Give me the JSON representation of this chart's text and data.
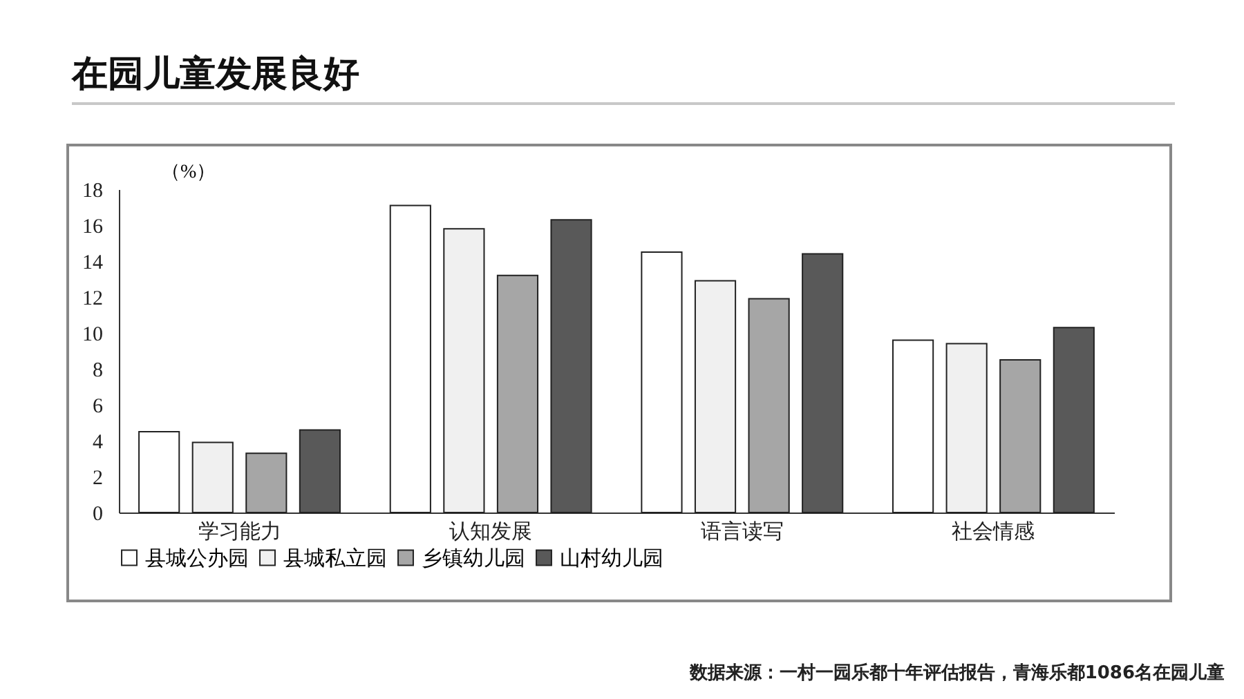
{
  "chart_data": {
    "type": "bar",
    "title": "在园儿童发展良好",
    "ylabel": "（%）",
    "categories": [
      "学习能力",
      "认知发展",
      "语言读写",
      "社会情感"
    ],
    "series": [
      {
        "name": "县城公办园",
        "color": "#ffffff",
        "values": [
          4.5,
          17.1,
          14.5,
          9.6
        ]
      },
      {
        "name": "县城私立园",
        "color": "#f0f0f0",
        "values": [
          3.9,
          15.8,
          12.9,
          9.4
        ]
      },
      {
        "name": "乡镇幼儿园",
        "color": "#a6a6a6",
        "values": [
          3.3,
          13.2,
          11.9,
          8.5
        ]
      },
      {
        "name": "山村幼儿园",
        "color": "#595959",
        "values": [
          4.6,
          16.3,
          14.4,
          10.3
        ]
      }
    ],
    "ylim": [
      0,
      18
    ],
    "yticks": [
      0,
      2,
      4,
      6,
      8,
      10,
      12,
      14,
      16,
      18
    ],
    "grid": false,
    "legend": "bottom",
    "annotations": [
      "数据来源：一村一园乐都十年评估报告，青海乐都1086名在园儿童"
    ]
  }
}
